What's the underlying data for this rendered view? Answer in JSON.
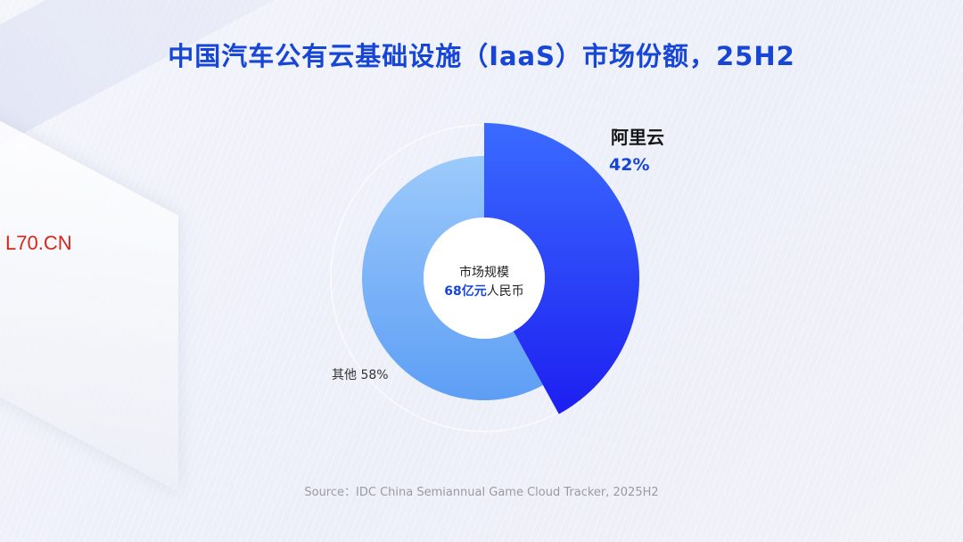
{
  "page": {
    "title": "中国汽车公有云基础设施（IaaS）市场份额，25H2",
    "watermark": "L70.CN",
    "source": "Source：IDC China Semiannual Game Cloud Tracker, 2025H2"
  },
  "center": {
    "title": "市场规模",
    "value_number": "68亿元",
    "value_unit": "人民币"
  },
  "labels": {
    "aliyun_name": "阿里云",
    "aliyun_pct": "42%",
    "other": "其他 58%"
  },
  "colors": {
    "title": "#1746d6",
    "aliyun_top": "#3a6bff",
    "aliyun_bottom": "#1d1ff0",
    "other_top": "#9ccafb",
    "other_bottom": "#5d9ef5"
  },
  "chart_data": {
    "type": "pie",
    "title": "中国汽车公有云基础设施（IaaS）市场份额，25H2",
    "slices": [
      {
        "name": "阿里云",
        "value": 42
      },
      {
        "name": "其他",
        "value": 58
      }
    ],
    "center_label": "市场规模 68亿元人民币",
    "legend": "none"
  }
}
